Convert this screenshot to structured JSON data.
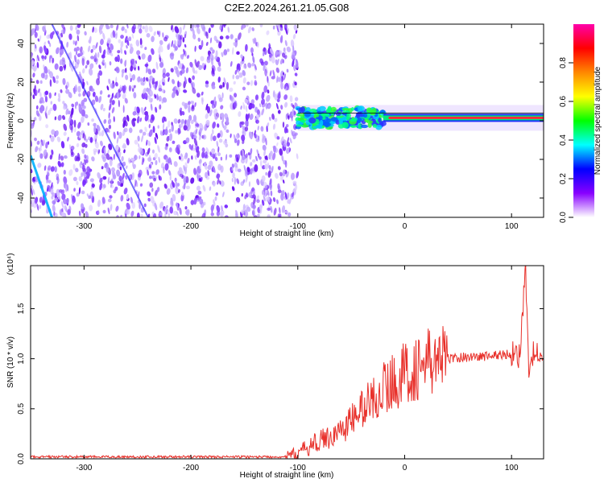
{
  "title": "C2E2.2024.261.21.05.G08",
  "chart_data": [
    {
      "type": "heatmap",
      "xlabel": "Height of straight line (km)",
      "ylabel": "Frequency (Hz)",
      "xlim": [
        -350,
        130
      ],
      "ylim": [
        -50,
        50
      ],
      "x_ticks": [
        -300,
        -200,
        -100,
        0,
        100
      ],
      "x_tick_labels": [
        "-300",
        "-200",
        "-100",
        "0",
        "100"
      ],
      "y_ticks": [
        -40,
        -20,
        0,
        20,
        40
      ],
      "y_tick_labels": [
        "-40",
        "-20",
        "0",
        "20",
        "40"
      ],
      "noise_region_x": [
        -350,
        -100
      ],
      "signal_band": {
        "x": [
          -100,
          130
        ],
        "frequency_hz": 1.5
      },
      "colorbar": {
        "label": "Normalized spectral amplitude",
        "range": [
          0.0,
          1.0
        ],
        "ticks": [
          0.0,
          0.2,
          0.4,
          0.6,
          0.8
        ],
        "tick_labels": [
          "0.0",
          "0.2",
          "0.4",
          "0.6",
          "0.8"
        ],
        "colormap": [
          "#ffffff",
          "#8800ff",
          "#0000ff",
          "#00ffff",
          "#00ff00",
          "#ffff00",
          "#ff8800",
          "#ff0000",
          "#ff00aa"
        ]
      },
      "grid": false
    },
    {
      "type": "line",
      "xlabel": "Height of straight line (km)",
      "ylabel": "SNR (10 * v/v)",
      "y_multiplier": "(x10⁴)",
      "xlim": [
        -350,
        130
      ],
      "ylim": [
        0,
        1.93
      ],
      "x_ticks": [
        -300,
        -200,
        -100,
        0,
        100
      ],
      "x_tick_labels": [
        "-300",
        "-200",
        "-100",
        "0",
        "100"
      ],
      "y_ticks": [
        0.0,
        0.5,
        1.0,
        1.5
      ],
      "y_tick_labels": [
        "0.0",
        "0.5",
        "1.0",
        "1.5"
      ],
      "series": [
        {
          "color": "#e8302a",
          "x": [
            -350,
            -300,
            -200,
            -110,
            -100,
            -90,
            -80,
            -70,
            -60,
            -50,
            -40,
            -30,
            -20,
            -10,
            0,
            10,
            20,
            30,
            40,
            50,
            60,
            70,
            80,
            90,
            100,
            103,
            108,
            113,
            116,
            120,
            125,
            130
          ],
          "y": [
            0.02,
            0.02,
            0.02,
            0.02,
            0.06,
            0.12,
            0.18,
            0.22,
            0.28,
            0.38,
            0.5,
            0.6,
            0.7,
            0.78,
            0.85,
            0.9,
            0.95,
            0.98,
            1.0,
            1.01,
            1.02,
            1.02,
            1.03,
            1.04,
            1.05,
            1.08,
            1.02,
            1.9,
            0.85,
            1.05,
            1.02,
            1.0
          ]
        }
      ]
    }
  ]
}
